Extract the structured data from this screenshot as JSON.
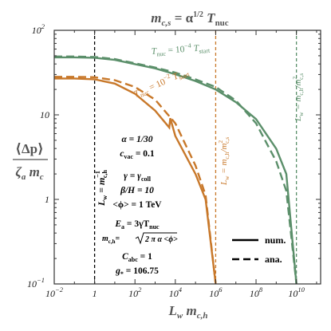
{
  "chart_data": {
    "type": "line",
    "title_parts": {
      "lead": "m",
      "lead_sub": "c,s",
      "eq": " = α",
      "sup": "1/2",
      "tail": " T",
      "tail_sub": "nuc"
    },
    "xlabel_parts": {
      "a": "L",
      "a_sub": "w",
      "b": " m",
      "b_sub": "c,h"
    },
    "ylabel_parts": {
      "top": "⟨Δp⟩",
      "bottom_a": "ζ",
      "bottom_a_sub": "a",
      "bottom_b": " m",
      "bottom_b_sub": "c"
    },
    "x_scale": "log",
    "y_scale": "log",
    "xlim_log10": [
      -2,
      11.2
    ],
    "ylim_log10": [
      -1,
      2
    ],
    "x_ticks": [
      {
        "v": -2,
        "base": "10",
        "exp": "−2"
      },
      {
        "v": 0,
        "base": "1",
        "exp": ""
      },
      {
        "v": 2,
        "base": "10",
        "exp": "2"
      },
      {
        "v": 4,
        "base": "10",
        "exp": "4"
      },
      {
        "v": 6,
        "base": "10",
        "exp": "6"
      },
      {
        "v": 8,
        "base": "10",
        "exp": "8"
      },
      {
        "v": 10,
        "base": "10",
        "exp": "10"
      }
    ],
    "y_ticks": [
      {
        "v": -1,
        "base": "10",
        "exp": "−1"
      },
      {
        "v": 0,
        "base": "1",
        "exp": ""
      },
      {
        "v": 1,
        "base": "10",
        "exp": ""
      },
      {
        "v": 2,
        "base": "10",
        "exp": "2"
      }
    ],
    "colors": {
      "green": "#5b8f6a",
      "orange": "#c8782a",
      "black": "#000000"
    },
    "series": [
      {
        "name": "T_nuc = 10^-4 T_start (num.)",
        "color": "#5b8f6a",
        "dash": "solid",
        "points_log10": [
          [
            -2,
            1.68
          ],
          [
            -1,
            1.68
          ],
          [
            0,
            1.675
          ],
          [
            1,
            1.65
          ],
          [
            2,
            1.6
          ],
          [
            3,
            1.55
          ],
          [
            4,
            1.48
          ],
          [
            5,
            1.4
          ],
          [
            6,
            1.3
          ],
          [
            7,
            1.15
          ],
          [
            8,
            0.95
          ],
          [
            9,
            0.6
          ],
          [
            9.5,
            0.3
          ],
          [
            10,
            -1
          ]
        ]
      },
      {
        "name": "T_nuc = 10^-4 T_start (ana.)",
        "color": "#5b8f6a",
        "dash": "dashed",
        "points_log10": [
          [
            -2,
            1.69
          ],
          [
            -1,
            1.69
          ],
          [
            0,
            1.685
          ],
          [
            1,
            1.66
          ],
          [
            2,
            1.61
          ],
          [
            3,
            1.56
          ],
          [
            4,
            1.5
          ],
          [
            5,
            1.42
          ],
          [
            6,
            1.33
          ],
          [
            7,
            1.17
          ],
          [
            8,
            0.9
          ],
          [
            9,
            0.45
          ],
          [
            9.5,
            0.1
          ],
          [
            10,
            -1
          ]
        ]
      },
      {
        "name": "T_nuc = 10^-2 T_start (num.)",
        "color": "#c8782a",
        "dash": "solid",
        "points_log10": [
          [
            -2,
            1.43
          ],
          [
            -1,
            1.43
          ],
          [
            0,
            1.42
          ],
          [
            1,
            1.37
          ],
          [
            2,
            1.25
          ],
          [
            3,
            1.05
          ],
          [
            3.7,
            0.85
          ],
          [
            3.75,
            0.96
          ],
          [
            4,
            0.75
          ],
          [
            5,
            0.3
          ],
          [
            5.5,
            0
          ],
          [
            6,
            -1
          ]
        ]
      },
      {
        "name": "T_nuc = 10^-2 T_start (ana.)",
        "color": "#c8782a",
        "dash": "dashed",
        "points_log10": [
          [
            -2,
            1.45
          ],
          [
            -1,
            1.45
          ],
          [
            0,
            1.445
          ],
          [
            1,
            1.41
          ],
          [
            2,
            1.33
          ],
          [
            3,
            1.18
          ],
          [
            4,
            0.9
          ],
          [
            5,
            0.4
          ],
          [
            5.5,
            0.05
          ],
          [
            6,
            -1
          ]
        ]
      }
    ],
    "vlines": [
      {
        "x_log10": 0,
        "color": "#000000"
      },
      {
        "x_log10": 6,
        "color": "#c8782a"
      },
      {
        "x_log10": 10,
        "color": "#5b8f6a"
      }
    ],
    "curve_labels": {
      "green": {
        "a": "T",
        "a_sub": "nuc",
        "b": " = 10",
        "b_sup": "−4",
        "c": " T",
        "c_sub": "start"
      },
      "orange": {
        "a": "T",
        "a_sub": "nuc",
        "b": " = 10",
        "b_sup": "−2",
        "c": " T",
        "c_sub": "start"
      }
    },
    "vline_labels": {
      "black": {
        "a": "L",
        "a_sub": "w",
        "b": " = m",
        "b_sub": "c,h",
        "b_sup": "−1"
      },
      "orange": {
        "a": "L",
        "a_sub": "w",
        "b": " = m",
        "b_sub": "c,h",
        "c": "/m",
        "c_sub": "c,s",
        "c_sup": "2"
      },
      "green": {
        "a": "L",
        "a_sub": "w",
        "b": " = m",
        "b_sub": "c,h",
        "c": "/m",
        "c_sub": "c,s",
        "c_sup": "2"
      }
    },
    "params": {
      "alpha": "α = 1/30",
      "cvac": {
        "a": "c",
        "a_sub": "vac",
        "b": " = 0.1"
      },
      "gamma": {
        "a": "γ = γ",
        "a_sub": "coll"
      },
      "beta": "β/H = 10",
      "phi": "<ϕ> = 1 TeV",
      "Ea": {
        "a": "E",
        "a_sub": "a",
        "b": " = 3γT",
        "b_sub": "nuc"
      },
      "mch": {
        "a": "m",
        "a_sub": "c,h",
        "b": "=",
        "c": "2 π α <ϕ>"
      },
      "cabc": {
        "a": "C",
        "a_sub": "abc",
        "b": " = 1"
      },
      "gstar": {
        "a": "g",
        "a_sub": "*",
        "b": " = 106.75"
      }
    },
    "legend": [
      {
        "label": "num.",
        "dash": "solid"
      },
      {
        "label": "ana.",
        "dash": "dashed"
      }
    ],
    "legend_position": "bottom-right"
  }
}
